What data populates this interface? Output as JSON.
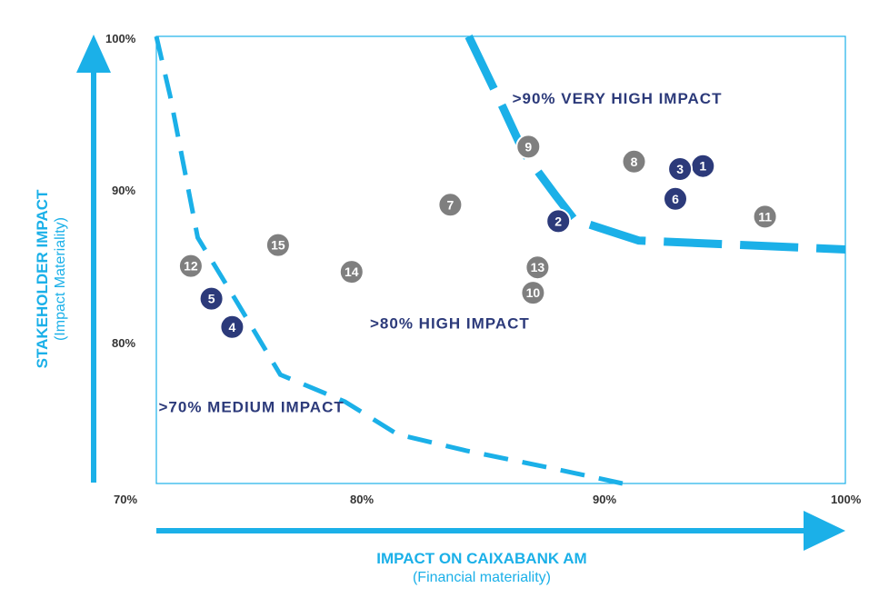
{
  "chart_data": {
    "type": "scatter",
    "title": "",
    "xlabel": "IMPACT ON CAIXABANK AM",
    "xlabel_sub": "(Financial materiality)",
    "ylabel": "STAKEHOLDER IMPACT",
    "ylabel_sub": "(Impact Materiality)",
    "xlim": [
      70,
      100
    ],
    "ylim": [
      70,
      100
    ],
    "x_ticks": [
      "70%",
      "80%",
      "90%",
      "100%"
    ],
    "y_ticks": [
      "80%",
      "90%",
      "100%"
    ],
    "grid": false,
    "zones": [
      {
        "label": ">90% VERY HIGH IMPACT",
        "at": [
          85.5,
          95.5
        ]
      },
      {
        "label": ">80% HIGH IMPACT",
        "at": [
          79.3,
          80.4
        ]
      },
      {
        "label": ">70% MEDIUM IMPACT",
        "at": [
          70.1,
          74.8
        ]
      }
    ],
    "thresholds": [
      {
        "name": "90%",
        "points": [
          [
            83.6,
            100
          ],
          [
            85.1,
            95.2
          ],
          [
            86,
            92.2
          ],
          [
            87.4,
            89.3
          ],
          [
            88.2,
            87.7
          ],
          [
            91,
            86.3
          ],
          [
            100,
            85.7
          ]
        ]
      },
      {
        "name": "80%",
        "points": [
          [
            70,
            100
          ],
          [
            70.6,
            96
          ],
          [
            71.8,
            86.5
          ],
          [
            73.5,
            82.2
          ],
          [
            75.4,
            77.3
          ],
          [
            78.2,
            75.5
          ],
          [
            80.5,
            73.3
          ],
          [
            83.5,
            72.2
          ],
          [
            87,
            71.1
          ],
          [
            90.3,
            70
          ]
        ]
      }
    ],
    "colors": {
      "accent": "#1bb0e8",
      "axis_title": "#1bb0e8",
      "zone_text": "#2c3a7a",
      "point_high": "#2c3a7a",
      "point_other": "#7f7f7f"
    },
    "points": [
      {
        "label": "1",
        "x": 93.8,
        "y": 91.3,
        "group": "high"
      },
      {
        "label": "2",
        "x": 87.5,
        "y": 87.6,
        "group": "high"
      },
      {
        "label": "3",
        "x": 92.8,
        "y": 91.1,
        "group": "high"
      },
      {
        "label": "4",
        "x": 73.3,
        "y": 80.5,
        "group": "high"
      },
      {
        "label": "5",
        "x": 72.4,
        "y": 82.4,
        "group": "high"
      },
      {
        "label": "6",
        "x": 92.6,
        "y": 89.1,
        "group": "high"
      },
      {
        "label": "7",
        "x": 82.8,
        "y": 88.7,
        "group": "other"
      },
      {
        "label": "8",
        "x": 90.8,
        "y": 91.6,
        "group": "other"
      },
      {
        "label": "9",
        "x": 86.2,
        "y": 92.6,
        "group": "other"
      },
      {
        "label": "10",
        "x": 86.4,
        "y": 82.8,
        "group": "other"
      },
      {
        "label": "11",
        "x": 96.5,
        "y": 87.9,
        "group": "other"
      },
      {
        "label": "12",
        "x": 71.5,
        "y": 84.6,
        "group": "other"
      },
      {
        "label": "13",
        "x": 86.6,
        "y": 84.5,
        "group": "other"
      },
      {
        "label": "14",
        "x": 78.5,
        "y": 84.2,
        "group": "other"
      },
      {
        "label": "15",
        "x": 75.3,
        "y": 86.0,
        "group": "other"
      }
    ]
  }
}
